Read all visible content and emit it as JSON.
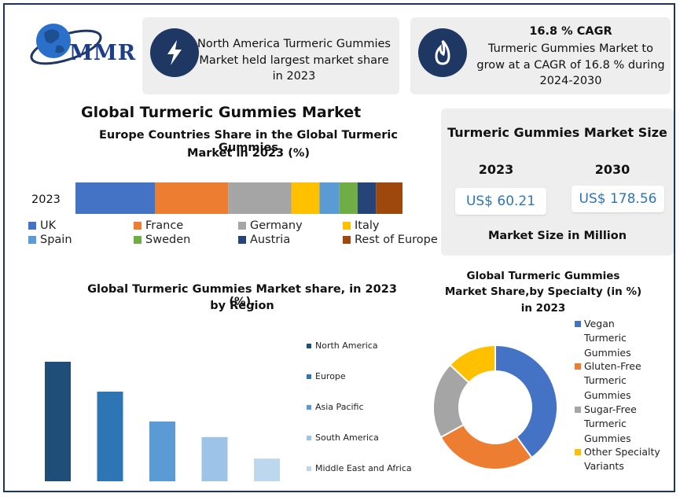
{
  "brand": {
    "logo_text": "MMR"
  },
  "info_cards": [
    {
      "text": "North America Turmeric Gummies Market held largest market share in 2023",
      "icon": "lightning-icon"
    },
    {
      "title": "16.8 % CAGR",
      "text": "Turmeric Gummies Market to grow at a CAGR of 16.8 % during 2024-2030",
      "icon": "flame-icon"
    }
  ],
  "main_title": "Global Turmeric Gummies Market",
  "market_size": {
    "title": "Turmeric Gummies Market Size",
    "year_a": "2023",
    "year_b": "2030",
    "value_a": "US$ 60.21",
    "value_b": "US$ 178.56",
    "footer": "Market Size in Million"
  },
  "chart_data": [
    {
      "type": "bar",
      "orientation": "horizontal-stacked",
      "title": "Europe Countries Share in the Global Turmeric Gummies Market in 2023 (%)",
      "title_lines": [
        "Europe Countries Share in the Global Turmeric Gummies",
        "Market in 2023 (%)"
      ],
      "categories": [
        "2023"
      ],
      "series": [
        {
          "name": "UK",
          "values": [
            24
          ],
          "color": "#4472c4"
        },
        {
          "name": "France",
          "values": [
            22
          ],
          "color": "#ed7d31"
        },
        {
          "name": "Germany",
          "values": [
            19
          ],
          "color": "#a5a5a5"
        },
        {
          "name": "Italy",
          "values": [
            8.5
          ],
          "color": "#ffc000"
        },
        {
          "name": "Spain",
          "values": [
            6
          ],
          "color": "#5b9bd5"
        },
        {
          "name": "Sweden",
          "values": [
            5.5
          ],
          "color": "#70ad47"
        },
        {
          "name": "Austria",
          "values": [
            5.5
          ],
          "color": "#264478"
        },
        {
          "name": "Rest of Europe",
          "values": [
            8
          ],
          "color": "#9e480e"
        }
      ],
      "legend_position": "bottom"
    },
    {
      "type": "bar",
      "title": "Global Turmeric Gummies Market share, in 2023 (%), by Region",
      "title_lines": [
        "Global Turmeric Gummies Market share, in 2023 (%),",
        "by Region"
      ],
      "categories": [
        "North America",
        "Europe",
        "Asia Pacific",
        "South America",
        "Middle East and Africa"
      ],
      "values": [
        100,
        75,
        50,
        37,
        19
      ],
      "colors": [
        "#1f4e79",
        "#2e75b6",
        "#5b9bd5",
        "#9dc3e6",
        "#bdd7ee"
      ],
      "ylim": [
        0,
        100
      ],
      "grid": false,
      "legend_position": "right"
    },
    {
      "type": "pie",
      "variant": "donut",
      "title": "Global Turmeric Gummies Market Share,by Specialty (in %) in 2023",
      "title_lines": [
        "Global Turmeric Gummies",
        "Market Share,by Specialty  (in %)",
        "in 2023"
      ],
      "categories": [
        "Vegan Turmeric Gummies",
        "Gluten-Free Turmeric Gummies",
        "Sugar-Free Turmeric Gummies",
        "Other Specialty Variants"
      ],
      "legend_lines": [
        [
          "Vegan",
          "Turmeric",
          "Gummies"
        ],
        [
          "Gluten-Free",
          "Turmeric",
          "Gummies"
        ],
        [
          "Sugar-Free",
          "Turmeric",
          "Gummies"
        ],
        [
          "Other Specialty",
          "Variants"
        ]
      ],
      "values": [
        40,
        27,
        20,
        13
      ],
      "colors": [
        "#4472c4",
        "#ed7d31",
        "#a5a5a5",
        "#ffc000"
      ],
      "legend_position": "right"
    }
  ]
}
